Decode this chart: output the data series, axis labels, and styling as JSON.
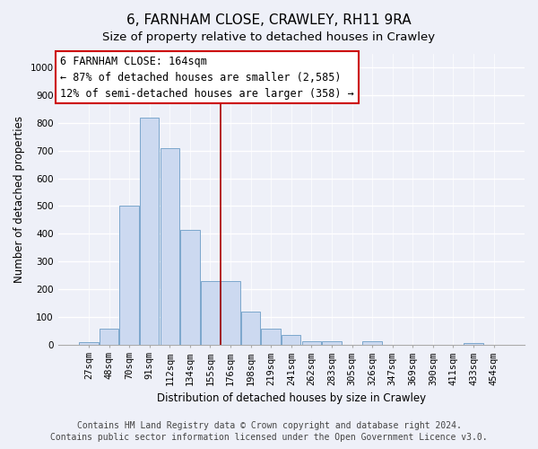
{
  "title": "6, FARNHAM CLOSE, CRAWLEY, RH11 9RA",
  "subtitle": "Size of property relative to detached houses in Crawley",
  "xlabel": "Distribution of detached houses by size in Crawley",
  "ylabel": "Number of detached properties",
  "bar_labels": [
    "27sqm",
    "48sqm",
    "70sqm",
    "91sqm",
    "112sqm",
    "134sqm",
    "155sqm",
    "176sqm",
    "198sqm",
    "219sqm",
    "241sqm",
    "262sqm",
    "283sqm",
    "305sqm",
    "326sqm",
    "347sqm",
    "369sqm",
    "390sqm",
    "411sqm",
    "433sqm",
    "454sqm"
  ],
  "bar_values": [
    8,
    58,
    500,
    820,
    710,
    415,
    230,
    230,
    118,
    57,
    33,
    13,
    13,
    0,
    13,
    0,
    0,
    0,
    0,
    5,
    0
  ],
  "bar_color": "#ccd9f0",
  "bar_edge_color": "#7ba7cc",
  "vline_x_idx": 6.5,
  "vline_color": "#aa0000",
  "annotation_line1": "6 FARNHAM CLOSE: 164sqm",
  "annotation_line2": "← 87% of detached houses are smaller (2,585)",
  "annotation_line3": "12% of semi-detached houses are larger (358) →",
  "annotation_box_facecolor": "#ffffff",
  "annotation_box_edgecolor": "#cc0000",
  "ylim": [
    0,
    1050
  ],
  "yticks": [
    0,
    100,
    200,
    300,
    400,
    500,
    600,
    700,
    800,
    900,
    1000
  ],
  "bg_color": "#eef0f8",
  "plot_bg_color": "#eef0f8",
  "title_fontsize": 11,
  "subtitle_fontsize": 9.5,
  "axis_label_fontsize": 8.5,
  "tick_fontsize": 7.5,
  "annotation_fontsize": 8.5,
  "footer_fontsize": 7,
  "footer_line1": "Contains HM Land Registry data © Crown copyright and database right 2024.",
  "footer_line2": "Contains public sector information licensed under the Open Government Licence v3.0."
}
